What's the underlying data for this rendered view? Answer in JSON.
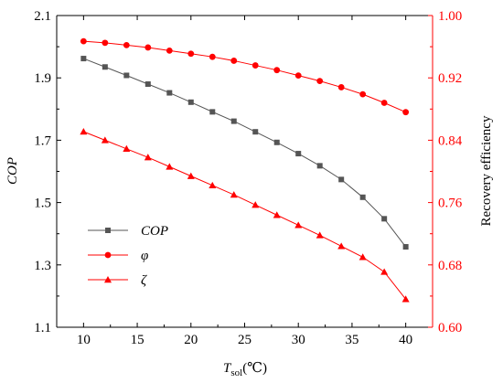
{
  "chart_data": {
    "type": "line",
    "x": [
      10,
      12,
      14,
      16,
      18,
      20,
      22,
      24,
      26,
      28,
      30,
      32,
      34,
      36,
      38,
      40
    ],
    "xlabel": {
      "main": "T",
      "subscript": "sol",
      "unit": "(℃)"
    },
    "ylabel_left": "COP",
    "ylabel_right": "Recovery efficiency",
    "xlim": [
      7.5,
      42.5
    ],
    "ylim_left": [
      1.1,
      2.1
    ],
    "ylim_right": [
      0.6,
      1.0
    ],
    "xticks": [
      "10",
      "15",
      "20",
      "25",
      "30",
      "35",
      "40"
    ],
    "yticks_left": [
      "1.1",
      "1.3",
      "1.5",
      "1.7",
      "1.9",
      "2.1"
    ],
    "yticks_right": [
      "0.60",
      "0.68",
      "0.76",
      "0.84",
      "0.92",
      "1.00"
    ],
    "series": [
      {
        "name": "COP",
        "axis": "left",
        "marker": "square",
        "color": "#555555",
        "values": [
          1.962,
          1.935,
          1.908,
          1.88,
          1.852,
          1.822,
          1.791,
          1.761,
          1.727,
          1.693,
          1.657,
          1.618,
          1.574,
          1.517,
          1.448,
          1.358
        ]
      },
      {
        "name": "φ",
        "axis": "right",
        "marker": "circle",
        "color": "#ff0000",
        "values": [
          0.967,
          0.965,
          0.962,
          0.959,
          0.955,
          0.951,
          0.947,
          0.942,
          0.936,
          0.93,
          0.923,
          0.916,
          0.908,
          0.899,
          0.888,
          0.876
        ]
      },
      {
        "name": "ζ",
        "axis": "right",
        "marker": "triangle",
        "color": "#ff0000",
        "values": [
          0.851,
          0.84,
          0.829,
          0.818,
          0.806,
          0.794,
          0.782,
          0.77,
          0.757,
          0.744,
          0.731,
          0.718,
          0.704,
          0.69,
          0.671,
          0.636
        ]
      }
    ],
    "legend_position": "lower-left",
    "grid": false,
    "colors": {
      "left_axis": "#000000",
      "right_axis": "#ff0000"
    }
  }
}
